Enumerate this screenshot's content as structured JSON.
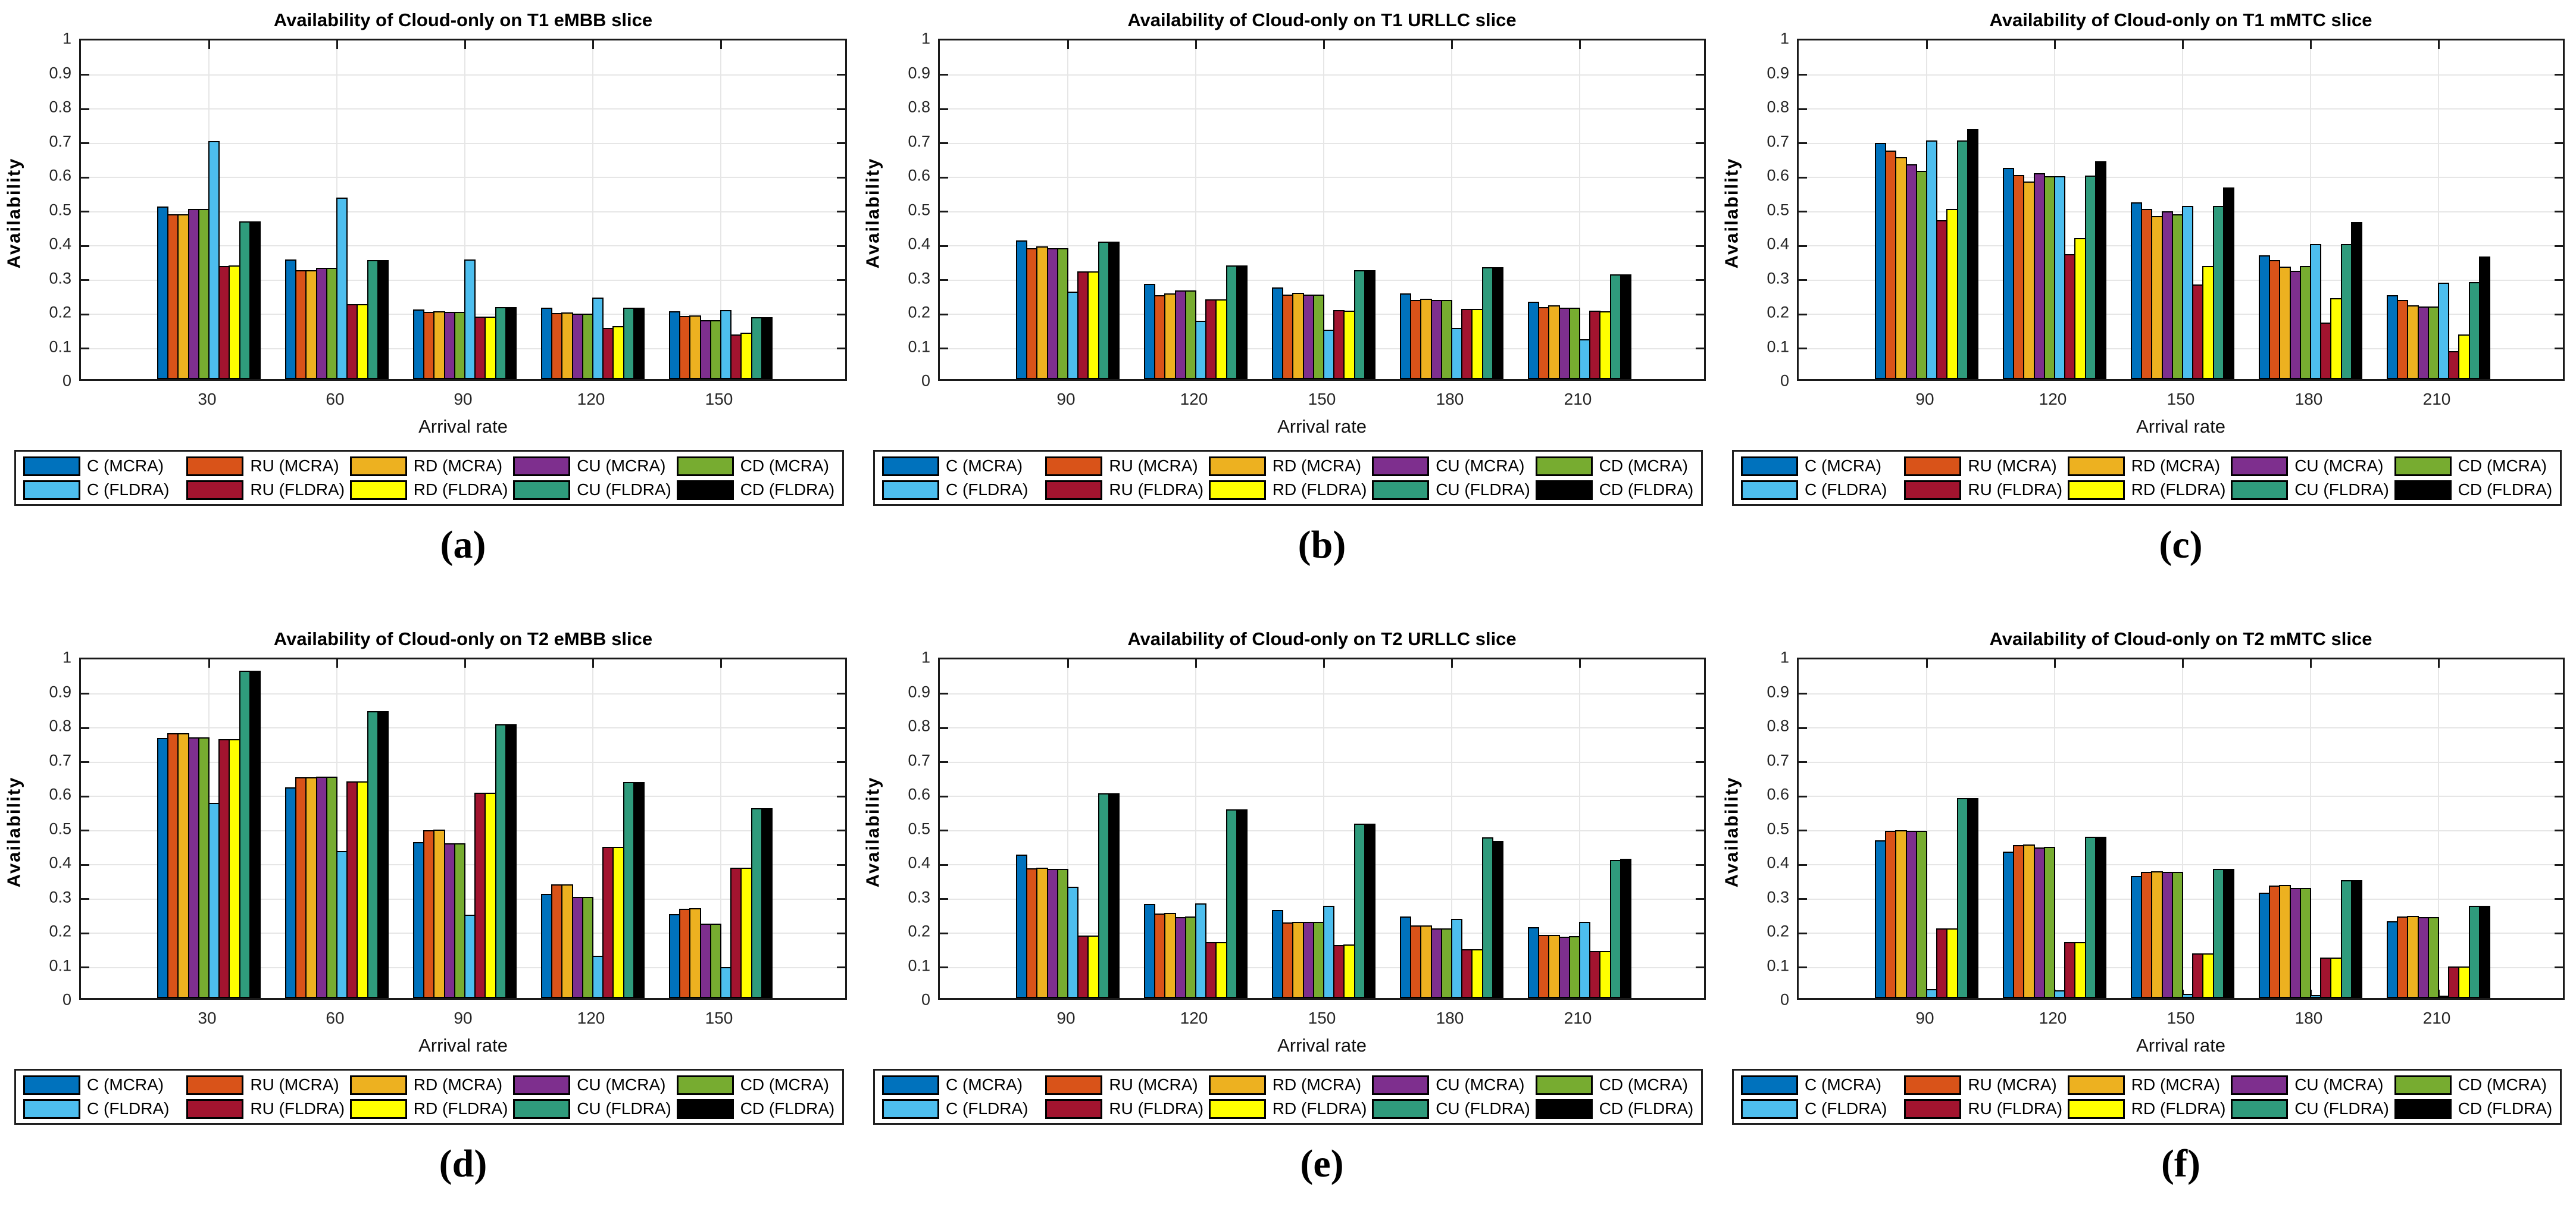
{
  "figure": {
    "background": "#ffffff",
    "axis_color": "#1a1a1a",
    "grid_color": "#e6e6e6",
    "tick_label_color": "#262626",
    "bar_edge_color": "#000000",
    "ytick_labels": [
      "0",
      "0.1",
      "0.2",
      "0.3",
      "0.4",
      "0.5",
      "0.6",
      "0.7",
      "0.8",
      "0.9",
      "1"
    ]
  },
  "chart_data": [
    {
      "type": "bar",
      "id": "a",
      "caption": "(a)",
      "title": "Availability of Cloud-only on T1 eMBB slice",
      "xlabel": "Arrival rate",
      "ylabel": "Availability",
      "ylim": [
        0,
        1
      ],
      "grid": true,
      "legend_position": "below",
      "categories": [
        30,
        60,
        90,
        120,
        150
      ],
      "series": [
        {
          "name": "C (MCRA)",
          "color": "#0072BD",
          "values": [
            0.505,
            0.349,
            0.203,
            0.208,
            0.199
          ]
        },
        {
          "name": "RU (MCRA)",
          "color": "#D95319",
          "values": [
            0.481,
            0.318,
            0.197,
            0.193,
            0.184
          ]
        },
        {
          "name": "RD (MCRA)",
          "color": "#EDB120",
          "values": [
            0.482,
            0.319,
            0.198,
            0.194,
            0.186
          ]
        },
        {
          "name": "CU (MCRA)",
          "color": "#7E2F8E",
          "values": [
            0.497,
            0.325,
            0.196,
            0.191,
            0.173
          ]
        },
        {
          "name": "CD (MCRA)",
          "color": "#77AC30",
          "values": [
            0.497,
            0.325,
            0.196,
            0.192,
            0.173
          ]
        },
        {
          "name": "C (FLDRA)",
          "color": "#4DBEEE",
          "values": [
            0.695,
            0.531,
            0.349,
            0.238,
            0.201
          ]
        },
        {
          "name": "RU (FLDRA)",
          "color": "#A2142F",
          "values": [
            0.331,
            0.219,
            0.183,
            0.15,
            0.131
          ]
        },
        {
          "name": "RD (FLDRA)",
          "color": "#FFFF00",
          "values": [
            0.332,
            0.22,
            0.183,
            0.155,
            0.135
          ]
        },
        {
          "name": "CU (FLDRA)",
          "color": "#2F9B7C",
          "values": [
            0.461,
            0.348,
            0.21,
            0.208,
            0.181
          ]
        },
        {
          "name": "CD (FLDRA)",
          "color": "#000000",
          "values": [
            0.461,
            0.348,
            0.21,
            0.208,
            0.181
          ]
        }
      ]
    },
    {
      "type": "bar",
      "id": "b",
      "caption": "(b)",
      "title": "Availability of Cloud-only on T1 URLLC slice",
      "xlabel": "Arrival rate",
      "ylabel": "Availability",
      "ylim": [
        0,
        1
      ],
      "grid": true,
      "legend_position": "below",
      "categories": [
        90,
        120,
        150,
        180,
        210
      ],
      "series": [
        {
          "name": "C (MCRA)",
          "color": "#0072BD",
          "values": [
            0.405,
            0.279,
            0.268,
            0.25,
            0.226
          ]
        },
        {
          "name": "RU (MCRA)",
          "color": "#D95319",
          "values": [
            0.383,
            0.246,
            0.247,
            0.231,
            0.211
          ]
        },
        {
          "name": "RD (MCRA)",
          "color": "#EDB120",
          "values": [
            0.388,
            0.25,
            0.252,
            0.235,
            0.216
          ]
        },
        {
          "name": "CU (MCRA)",
          "color": "#7E2F8E",
          "values": [
            0.383,
            0.26,
            0.247,
            0.232,
            0.208
          ]
        },
        {
          "name": "CD (MCRA)",
          "color": "#77AC30",
          "values": [
            0.383,
            0.26,
            0.247,
            0.232,
            0.208
          ]
        },
        {
          "name": "C (FLDRA)",
          "color": "#4DBEEE",
          "values": [
            0.255,
            0.17,
            0.144,
            0.149,
            0.116
          ]
        },
        {
          "name": "RU (FLDRA)",
          "color": "#A2142F",
          "values": [
            0.315,
            0.233,
            0.202,
            0.206,
            0.2
          ]
        },
        {
          "name": "RD (FLDRA)",
          "color": "#FFFF00",
          "values": [
            0.314,
            0.233,
            0.2,
            0.206,
            0.199
          ]
        },
        {
          "name": "CU (FLDRA)",
          "color": "#2F9B7C",
          "values": [
            0.402,
            0.332,
            0.319,
            0.327,
            0.306
          ]
        },
        {
          "name": "CD (FLDRA)",
          "color": "#000000",
          "values": [
            0.402,
            0.333,
            0.319,
            0.327,
            0.306
          ]
        }
      ]
    },
    {
      "type": "bar",
      "id": "c",
      "caption": "(c)",
      "title": "Availability of Cloud-only on T1 mMTC slice",
      "xlabel": "Arrival rate",
      "ylabel": "Availability",
      "ylim": [
        0,
        1
      ],
      "grid": true,
      "legend_position": "below",
      "categories": [
        90,
        120,
        150,
        180,
        210
      ],
      "series": [
        {
          "name": "C (MCRA)",
          "color": "#0072BD",
          "values": [
            0.69,
            0.617,
            0.517,
            0.361,
            0.245
          ]
        },
        {
          "name": "RU (MCRA)",
          "color": "#D95319",
          "values": [
            0.668,
            0.597,
            0.497,
            0.347,
            0.232
          ]
        },
        {
          "name": "RD (MCRA)",
          "color": "#EDB120",
          "values": [
            0.648,
            0.577,
            0.477,
            0.329,
            0.215
          ]
        },
        {
          "name": "CU (MCRA)",
          "color": "#7E2F8E",
          "values": [
            0.628,
            0.602,
            0.49,
            0.316,
            0.213
          ]
        },
        {
          "name": "CD (MCRA)",
          "color": "#77AC30",
          "values": [
            0.608,
            0.593,
            0.481,
            0.331,
            0.213
          ]
        },
        {
          "name": "C (FLDRA)",
          "color": "#4DBEEE",
          "values": [
            0.697,
            0.593,
            0.506,
            0.394,
            0.282
          ]
        },
        {
          "name": "RU (FLDRA)",
          "color": "#A2142F",
          "values": [
            0.464,
            0.366,
            0.276,
            0.166,
            0.082
          ]
        },
        {
          "name": "RD (FLDRA)",
          "color": "#FFFF00",
          "values": [
            0.498,
            0.413,
            0.331,
            0.236,
            0.13
          ]
        },
        {
          "name": "CU (FLDRA)",
          "color": "#2F9B7C",
          "values": [
            0.697,
            0.595,
            0.506,
            0.394,
            0.283
          ]
        },
        {
          "name": "CD (FLDRA)",
          "color": "#000000",
          "values": [
            0.731,
            0.637,
            0.56,
            0.46,
            0.358
          ]
        }
      ]
    },
    {
      "type": "bar",
      "id": "d",
      "caption": "(d)",
      "title": "Availability of Cloud-only on T2 eMBB slice",
      "xlabel": "Arrival rate",
      "ylabel": "Availability",
      "ylim": [
        0,
        1
      ],
      "grid": true,
      "legend_position": "below",
      "categories": [
        30,
        60,
        90,
        120,
        150
      ],
      "series": [
        {
          "name": "C (MCRA)",
          "color": "#0072BD",
          "values": [
            0.76,
            0.616,
            0.456,
            0.305,
            0.245
          ]
        },
        {
          "name": "RU (MCRA)",
          "color": "#D95319",
          "values": [
            0.774,
            0.645,
            0.491,
            0.332,
            0.261
          ]
        },
        {
          "name": "RD (MCRA)",
          "color": "#EDB120",
          "values": [
            0.774,
            0.645,
            0.493,
            0.333,
            0.262
          ]
        },
        {
          "name": "CU (MCRA)",
          "color": "#7E2F8E",
          "values": [
            0.761,
            0.647,
            0.452,
            0.296,
            0.218
          ]
        },
        {
          "name": "CD (MCRA)",
          "color": "#77AC30",
          "values": [
            0.761,
            0.647,
            0.452,
            0.296,
            0.218
          ]
        },
        {
          "name": "C (FLDRA)",
          "color": "#4DBEEE",
          "values": [
            0.57,
            0.429,
            0.243,
            0.124,
            0.091
          ]
        },
        {
          "name": "RU (FLDRA)",
          "color": "#A2142F",
          "values": [
            0.756,
            0.633,
            0.6,
            0.442,
            0.381
          ]
        },
        {
          "name": "RD (FLDRA)",
          "color": "#FFFF00",
          "values": [
            0.756,
            0.633,
            0.6,
            0.442,
            0.381
          ]
        },
        {
          "name": "CU (FLDRA)",
          "color": "#2F9B7C",
          "values": [
            0.956,
            0.839,
            0.8,
            0.631,
            0.554
          ]
        },
        {
          "name": "CD (FLDRA)",
          "color": "#000000",
          "values": [
            0.956,
            0.839,
            0.8,
            0.631,
            0.554
          ]
        }
      ]
    },
    {
      "type": "bar",
      "id": "e",
      "caption": "(e)",
      "title": "Availability of Cloud-only on T2 URLLC slice",
      "xlabel": "Arrival rate",
      "ylabel": "Availability",
      "ylim": [
        0,
        1
      ],
      "grid": true,
      "legend_position": "below",
      "categories": [
        90,
        120,
        150,
        180,
        210
      ],
      "series": [
        {
          "name": "C (MCRA)",
          "color": "#0072BD",
          "values": [
            0.419,
            0.275,
            0.257,
            0.238,
            0.207
          ]
        },
        {
          "name": "RU (MCRA)",
          "color": "#D95319",
          "values": [
            0.379,
            0.247,
            0.221,
            0.212,
            0.184
          ]
        },
        {
          "name": "RD (MCRA)",
          "color": "#EDB120",
          "values": [
            0.381,
            0.249,
            0.222,
            0.212,
            0.185
          ]
        },
        {
          "name": "CU (MCRA)",
          "color": "#7E2F8E",
          "values": [
            0.378,
            0.237,
            0.222,
            0.203,
            0.18
          ]
        },
        {
          "name": "CD (MCRA)",
          "color": "#77AC30",
          "values": [
            0.378,
            0.238,
            0.222,
            0.204,
            0.181
          ]
        },
        {
          "name": "C (FLDRA)",
          "color": "#4DBEEE",
          "values": [
            0.326,
            0.277,
            0.27,
            0.232,
            0.222
          ]
        },
        {
          "name": "RU (FLDRA)",
          "color": "#A2142F",
          "values": [
            0.182,
            0.164,
            0.155,
            0.143,
            0.137
          ]
        },
        {
          "name": "RD (FLDRA)",
          "color": "#FFFF00",
          "values": [
            0.182,
            0.164,
            0.156,
            0.143,
            0.138
          ]
        },
        {
          "name": "CU (FLDRA)",
          "color": "#2F9B7C",
          "values": [
            0.598,
            0.551,
            0.509,
            0.47,
            0.404
          ]
        },
        {
          "name": "CD (FLDRA)",
          "color": "#000000",
          "values": [
            0.598,
            0.551,
            0.51,
            0.46,
            0.407
          ]
        }
      ]
    },
    {
      "type": "bar",
      "id": "f",
      "caption": "(f)",
      "title": "Availability of Cloud-only on T2 mMTC slice",
      "xlabel": "Arrival rate",
      "ylabel": "Availability",
      "ylim": [
        0,
        1
      ],
      "grid": true,
      "legend_position": "below",
      "categories": [
        90,
        120,
        150,
        180,
        210
      ],
      "series": [
        {
          "name": "C (MCRA)",
          "color": "#0072BD",
          "values": [
            0.461,
            0.427,
            0.356,
            0.308,
            0.224
          ]
        },
        {
          "name": "RU (MCRA)",
          "color": "#D95319",
          "values": [
            0.488,
            0.447,
            0.369,
            0.329,
            0.238
          ]
        },
        {
          "name": "RD (MCRA)",
          "color": "#EDB120",
          "values": [
            0.49,
            0.449,
            0.37,
            0.331,
            0.24
          ]
        },
        {
          "name": "CU (MCRA)",
          "color": "#7E2F8E",
          "values": [
            0.488,
            0.44,
            0.368,
            0.321,
            0.237
          ]
        },
        {
          "name": "CD (MCRA)",
          "color": "#77AC30",
          "values": [
            0.488,
            0.442,
            0.368,
            0.321,
            0.237
          ]
        },
        {
          "name": "C (FLDRA)",
          "color": "#4DBEEE",
          "values": [
            0.026,
            0.022,
            0.012,
            0.009,
            0.006
          ]
        },
        {
          "name": "RU (FLDRA)",
          "color": "#A2142F",
          "values": [
            0.203,
            0.164,
            0.131,
            0.119,
            0.092
          ]
        },
        {
          "name": "RD (FLDRA)",
          "color": "#FFFF00",
          "values": [
            0.203,
            0.164,
            0.131,
            0.119,
            0.092
          ]
        },
        {
          "name": "CU (FLDRA)",
          "color": "#2F9B7C",
          "values": [
            0.584,
            0.472,
            0.378,
            0.344,
            0.269
          ]
        },
        {
          "name": "CD (FLDRA)",
          "color": "#000000",
          "values": [
            0.584,
            0.472,
            0.378,
            0.344,
            0.269
          ]
        }
      ]
    }
  ]
}
